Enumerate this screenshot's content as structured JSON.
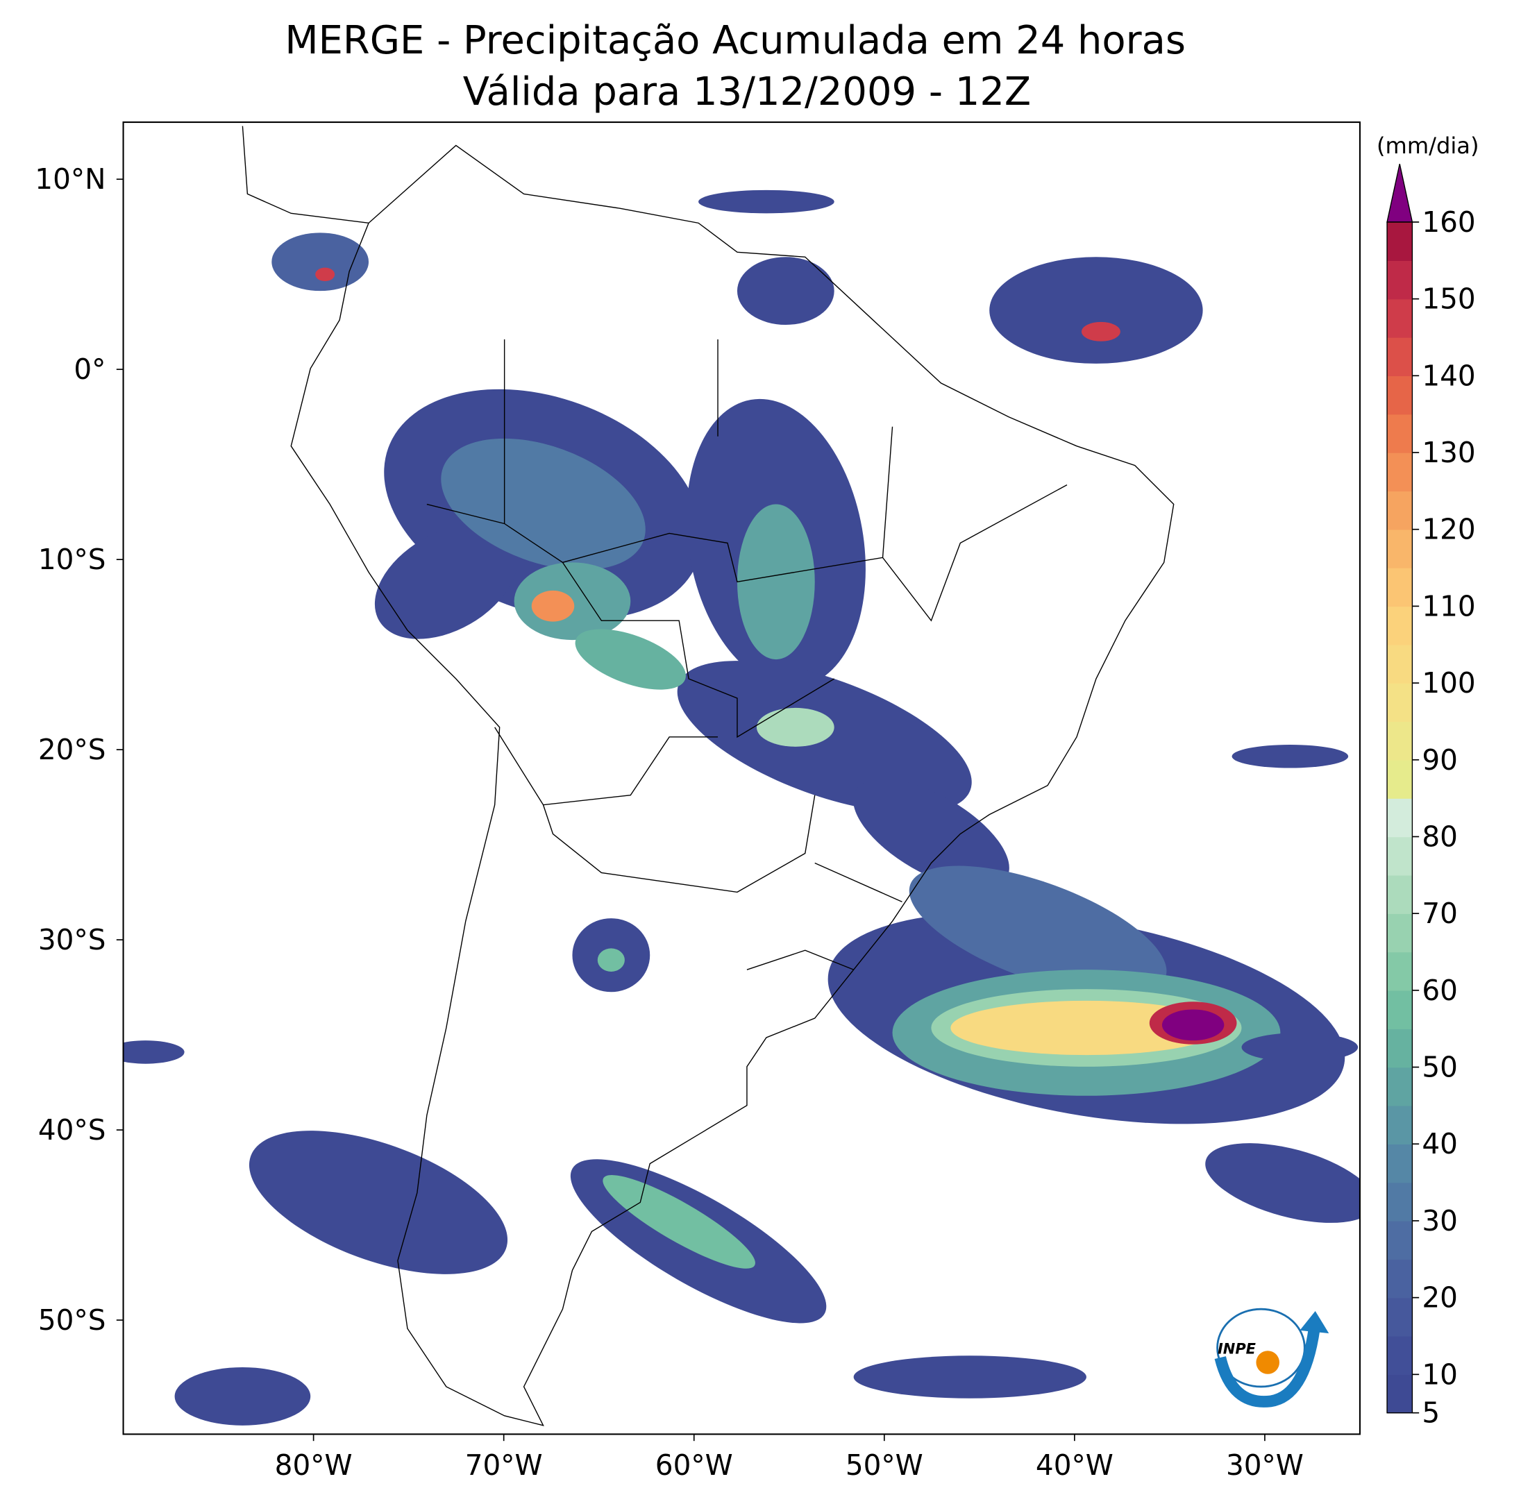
{
  "title": "MERGE - Precipitação Acumulada em 24 horas",
  "subtitle": "Válida para 13/12/2009 - 12Z",
  "map": {
    "xlim": [
      -90,
      -25
    ],
    "ylim": [
      -56,
      13
    ],
    "xticks": [
      {
        "value": -80,
        "label": "80°W"
      },
      {
        "value": -70,
        "label": "70°W"
      },
      {
        "value": -60,
        "label": "60°W"
      },
      {
        "value": -50,
        "label": "50°W"
      },
      {
        "value": -40,
        "label": "40°W"
      },
      {
        "value": -30,
        "label": "30°W"
      }
    ],
    "yticks": [
      {
        "value": 10,
        "label": "10°N"
      },
      {
        "value": 0,
        "label": "0°"
      },
      {
        "value": -10,
        "label": "10°S"
      },
      {
        "value": -20,
        "label": "20°S"
      },
      {
        "value": -30,
        "label": "30°S"
      },
      {
        "value": -40,
        "label": "40°S"
      },
      {
        "value": -50,
        "label": "50°S"
      }
    ]
  },
  "colorbar": {
    "label": "(mm/dia)",
    "lim": [
      5,
      160
    ],
    "ticks": [
      5,
      10,
      20,
      30,
      40,
      50,
      60,
      70,
      80,
      90,
      100,
      110,
      120,
      130,
      140,
      150,
      160
    ],
    "colors": [
      "#3e4a94",
      "#414f98",
      "#46589c",
      "#4a62a0",
      "#4e6da3",
      "#517aa5",
      "#5587a6",
      "#5a96a5",
      "#5fa4a2",
      "#66b2a0",
      "#72bfa2",
      "#84c9a7",
      "#98d2b0",
      "#acdbbc",
      "#c0e4cb",
      "#d3ecdc",
      "#e6eb8c",
      "#ede78a",
      "#f4e186",
      "#f8da81",
      "#fbd27b",
      "#fbc573",
      "#f9b66a",
      "#f6a460",
      "#f39056",
      "#ee7b4d",
      "#e66548",
      "#dc5049",
      "#cf3c4a",
      "#bf2a48",
      "#a8173f"
    ],
    "extend_color": "#800080"
  },
  "logo": "INPE"
}
